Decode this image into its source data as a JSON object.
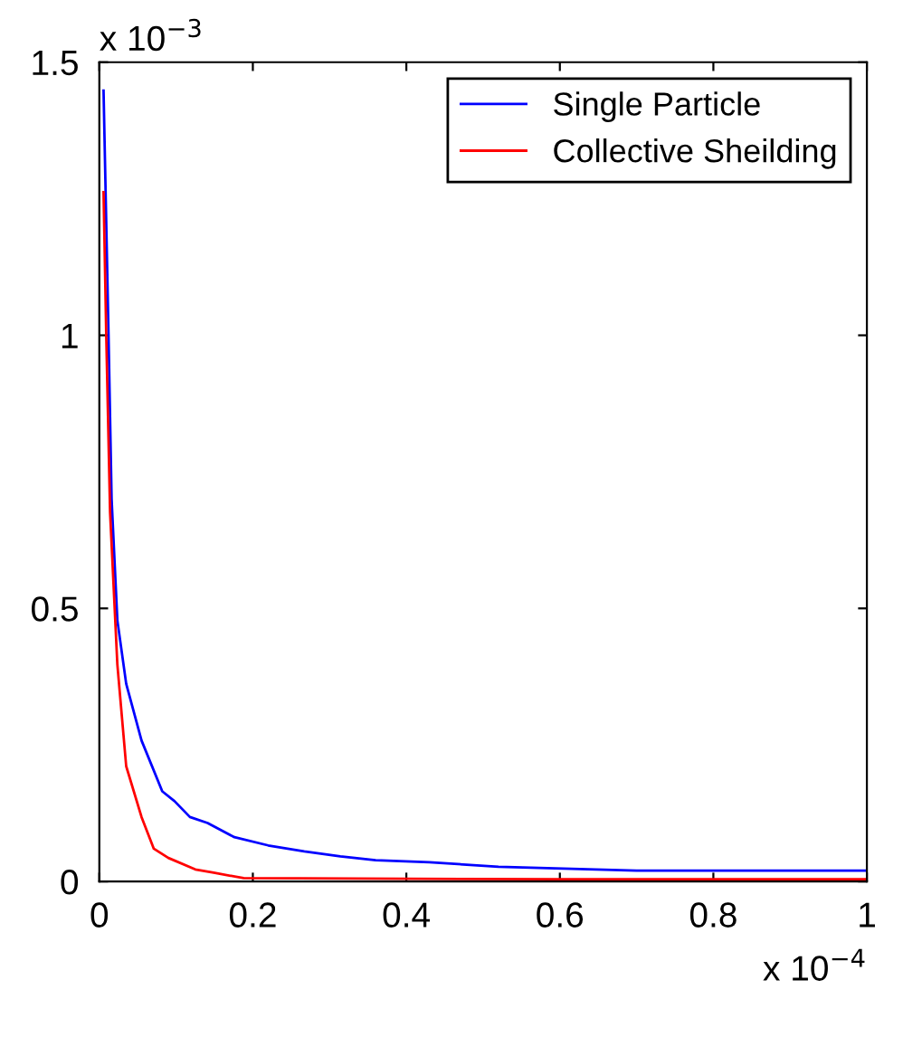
{
  "chart_data": {
    "type": "line",
    "xlim": [
      0,
      1
    ],
    "xticks": [
      0,
      0.2,
      0.4,
      0.6,
      0.8,
      1
    ],
    "ylim": [
      0,
      1.5
    ],
    "yticks": [
      0,
      0.5,
      1,
      1.5
    ],
    "annotations": [
      "x 10$^{−3}$",
      "x 10$^{−4}$"
    ],
    "grid": false,
    "legend": "top right",
    "marker": "none",
    "line_style": "solid",
    "series": [
      {
        "name": "Single Particle",
        "color": "#0000ff",
        "x": [
          0.0055,
          0.012,
          0.016,
          0.0235,
          0.035,
          0.055,
          0.082,
          0.098,
          0.118,
          0.141,
          0.176,
          0.22,
          0.267,
          0.314,
          0.36,
          0.43,
          0.52,
          0.7,
          1.0
        ],
        "values": [
          1.448,
          1.0,
          0.7,
          0.478,
          0.362,
          0.258,
          0.165,
          0.147,
          0.118,
          0.107,
          0.081,
          0.066,
          0.055,
          0.046,
          0.039,
          0.035,
          0.027,
          0.02,
          0.02
        ]
      },
      {
        "name": "Collective Sheilding",
        "color": "#ff0000",
        "x": [
          0.0055,
          0.009,
          0.014,
          0.0235,
          0.035,
          0.055,
          0.071,
          0.09,
          0.125,
          0.149,
          0.188,
          0.6,
          1.0
        ],
        "values": [
          1.262,
          1.0,
          0.676,
          0.397,
          0.211,
          0.118,
          0.06,
          0.043,
          0.022,
          0.016,
          0.006,
          0.004,
          0.004
        ]
      }
    ]
  }
}
